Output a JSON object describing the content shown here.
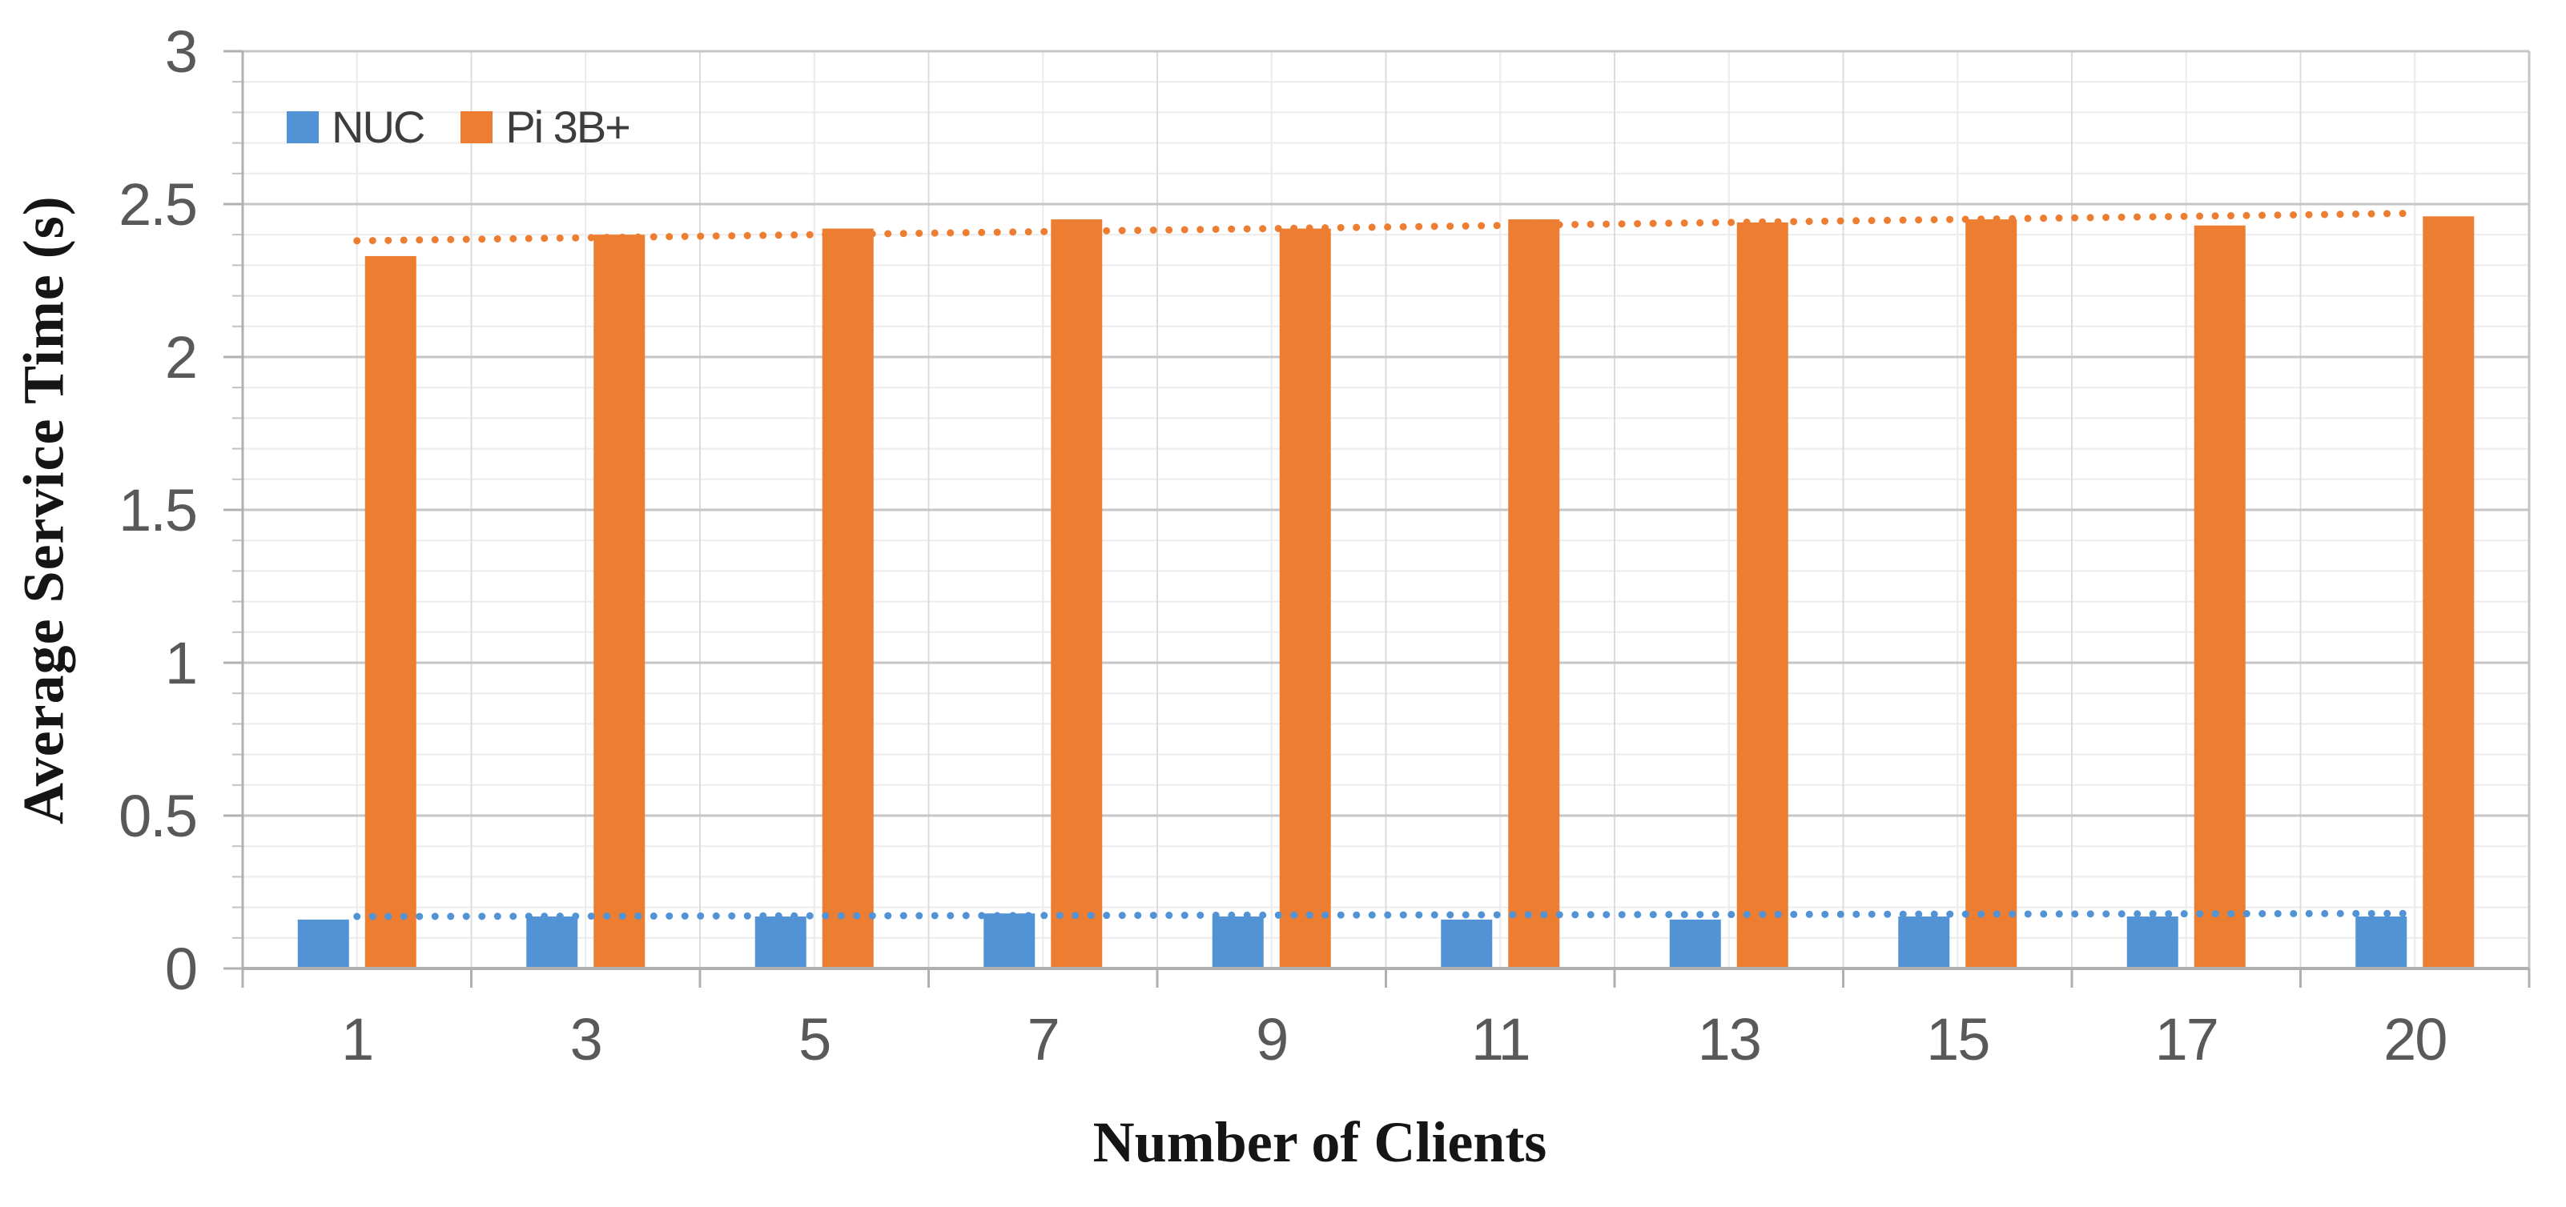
{
  "chart_data": {
    "type": "bar",
    "title": "",
    "categories": [
      "1",
      "3",
      "5",
      "7",
      "9",
      "11",
      "13",
      "15",
      "17",
      "20"
    ],
    "series": [
      {
        "name": "NUC",
        "color": "#5293D5",
        "values": [
          0.16,
          0.17,
          0.17,
          0.18,
          0.17,
          0.16,
          0.16,
          0.17,
          0.17,
          0.17
        ],
        "trendline": {
          "type": "linear",
          "style": "dotted",
          "start_value": 0.17,
          "end_value": 0.18
        }
      },
      {
        "name": "Pi 3B+",
        "color": "#ED7D31",
        "values": [
          2.33,
          2.4,
          2.42,
          2.45,
          2.42,
          2.45,
          2.44,
          2.45,
          2.43,
          2.46
        ],
        "trendline": {
          "type": "linear",
          "style": "dotted",
          "start_value": 2.38,
          "end_value": 2.47
        }
      }
    ],
    "xlabel": "Number of Clients",
    "ylabel": "Average Service Time (s)",
    "ylim": [
      0,
      3
    ],
    "y_major_step": 0.5,
    "y_minor_step": 0.1,
    "grid": true,
    "legend_position": "top-left"
  },
  "colors": {
    "background": "#ffffff",
    "axis_line": "#b0b0b0",
    "grid_major": "#c6c6c6",
    "grid_minor": "#ececec",
    "grid_vertical": "#e2e2e2",
    "tick_text": "#595959",
    "title_text": "#151515",
    "legend_text": "#3d3d3d"
  }
}
